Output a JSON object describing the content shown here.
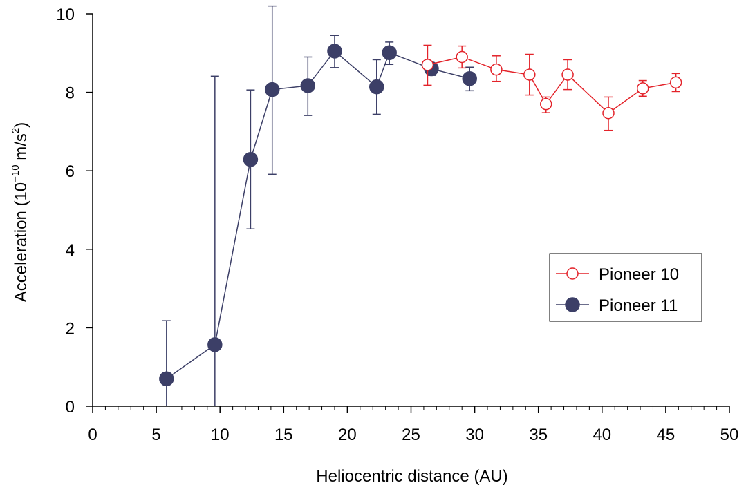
{
  "chart_data": {
    "type": "line",
    "xlabel": "Heliocentric distance (AU)",
    "ylabel": {
      "prefix": "Acceleration (10",
      "exp1": "−10",
      "mid": " m/s",
      "exp2": "2",
      "suffix": ")"
    },
    "xlim": [
      0,
      50
    ],
    "ylim": [
      0,
      10
    ],
    "x_ticks": [
      0,
      5,
      10,
      15,
      20,
      25,
      30,
      35,
      40,
      45,
      50
    ],
    "y_ticks": [
      0,
      2,
      4,
      6,
      8,
      10
    ],
    "grid": false,
    "legend_position": "right",
    "series": [
      {
        "name": "Pioneer 10",
        "color": "#e3232a",
        "marker": "open-circle",
        "points": [
          {
            "x": 26.3,
            "y": 8.7,
            "err_low": 8.18,
            "err_high": 9.2
          },
          {
            "x": 29.0,
            "y": 8.9,
            "err_low": 8.62,
            "err_high": 9.18
          },
          {
            "x": 31.7,
            "y": 8.58,
            "err_low": 8.28,
            "err_high": 8.93
          },
          {
            "x": 34.3,
            "y": 8.45,
            "err_low": 7.93,
            "err_high": 8.97
          },
          {
            "x": 35.6,
            "y": 7.7,
            "err_low": 7.48,
            "err_high": 7.88
          },
          {
            "x": 37.3,
            "y": 8.45,
            "err_low": 8.07,
            "err_high": 8.83
          },
          {
            "x": 40.5,
            "y": 7.47,
            "err_low": 7.03,
            "err_high": 7.88
          },
          {
            "x": 43.2,
            "y": 8.1,
            "err_low": 7.9,
            "err_high": 8.3
          },
          {
            "x": 45.8,
            "y": 8.25,
            "err_low": 8.02,
            "err_high": 8.48
          }
        ]
      },
      {
        "name": "Pioneer 11",
        "color": "#3c3f67",
        "marker": "filled-circle",
        "points": [
          {
            "x": 5.8,
            "y": 0.7,
            "err_low": 0.0,
            "err_high": 2.18
          },
          {
            "x": 9.6,
            "y": 1.57,
            "err_low": 0.0,
            "err_high": 8.41
          },
          {
            "x": 12.4,
            "y": 6.29,
            "err_low": 4.52,
            "err_high": 8.06
          },
          {
            "x": 14.1,
            "y": 8.07,
            "err_low": 5.91,
            "err_high": 10.2
          },
          {
            "x": 16.9,
            "y": 8.17,
            "err_low": 7.41,
            "err_high": 8.9
          },
          {
            "x": 19.0,
            "y": 9.05,
            "err_low": 8.63,
            "err_high": 9.45
          },
          {
            "x": 22.3,
            "y": 8.14,
            "err_low": 7.44,
            "err_high": 8.83
          },
          {
            "x": 23.3,
            "y": 9.01,
            "err_low": 8.71,
            "err_high": 9.28
          },
          {
            "x": 26.6,
            "y": 8.6,
            "err_low": 8.43,
            "err_high": 8.6
          },
          {
            "x": 29.6,
            "y": 8.35,
            "err_low": 8.04,
            "err_high": 8.64
          }
        ]
      }
    ]
  }
}
